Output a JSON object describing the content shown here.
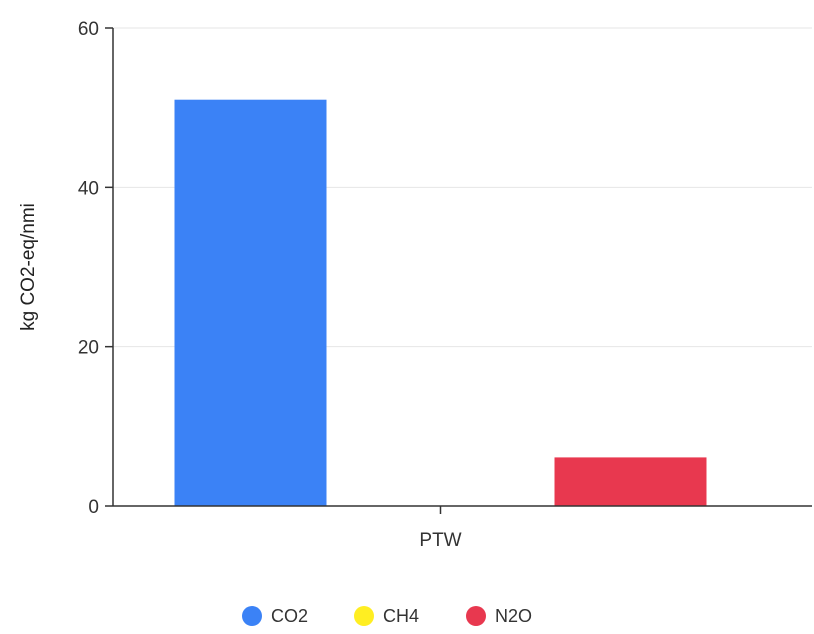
{
  "chart_data": {
    "type": "bar",
    "categories": [
      "PTW"
    ],
    "series": [
      {
        "name": "CO2",
        "values": [
          51
        ],
        "color": "#3b82f6"
      },
      {
        "name": "CH4",
        "values": [
          0
        ],
        "color": "#ffee22"
      },
      {
        "name": "N2O",
        "values": [
          6.1
        ],
        "color": "#e8384f"
      }
    ],
    "xlabel": "",
    "ylabel": "kg CO2-eq/nmi",
    "ylim": [
      0,
      60
    ],
    "yticks": [
      0,
      20,
      40,
      60
    ],
    "grid": true,
    "legend_position": "bottom-center"
  }
}
